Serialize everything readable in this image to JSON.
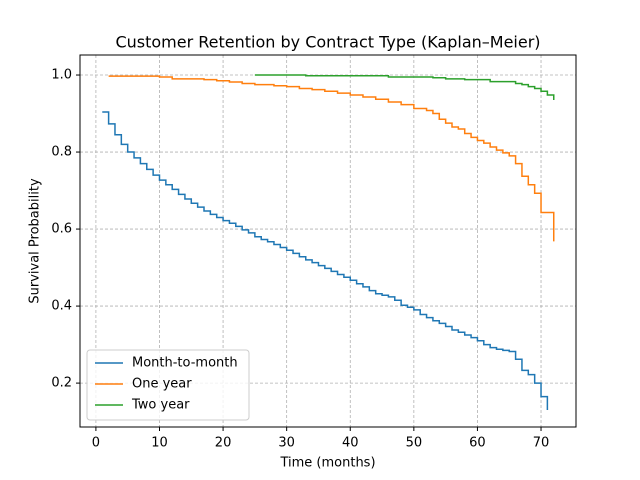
{
  "chart_data": {
    "type": "step",
    "title": "Customer Retention by Contract Type (Kaplan–Meier)",
    "x_label": "Time (months)",
    "y_label": "Survival Probability",
    "xlim": [
      -2.5,
      75.5
    ],
    "ylim": [
      0.086,
      1.052
    ],
    "xticks": [
      0,
      10,
      20,
      30,
      40,
      50,
      60,
      70
    ],
    "yticks": [
      0.2,
      0.4,
      0.6,
      0.8,
      {
        "value": 1,
        "label": "1.0"
      }
    ],
    "grid": true,
    "legend": "lower left",
    "series": [
      {
        "name": "Month-to-month",
        "color": "#1f77b4",
        "x": [
          1,
          2,
          3,
          4,
          5,
          6,
          7,
          8,
          9,
          10,
          11,
          12,
          13,
          14,
          15,
          16,
          17,
          18,
          19,
          20,
          21,
          22,
          23,
          24,
          25,
          26,
          27,
          28,
          29,
          30,
          31,
          32,
          33,
          34,
          35,
          36,
          37,
          38,
          39,
          40,
          41,
          42,
          43,
          44,
          45,
          46,
          47,
          48,
          49,
          50,
          51,
          52,
          53,
          54,
          55,
          56,
          57,
          58,
          59,
          60,
          61,
          62,
          63,
          64,
          65,
          66,
          67,
          68,
          69,
          70,
          71
        ],
        "values": [
          0.904,
          0.873,
          0.845,
          0.82,
          0.8,
          0.785,
          0.77,
          0.755,
          0.74,
          0.727,
          0.715,
          0.703,
          0.69,
          0.678,
          0.667,
          0.657,
          0.647,
          0.638,
          0.63,
          0.622,
          0.615,
          0.607,
          0.598,
          0.59,
          0.58,
          0.573,
          0.567,
          0.56,
          0.552,
          0.545,
          0.537,
          0.528,
          0.52,
          0.513,
          0.505,
          0.498,
          0.49,
          0.482,
          0.475,
          0.467,
          0.458,
          0.45,
          0.44,
          0.432,
          0.428,
          0.424,
          0.415,
          0.402,
          0.397,
          0.39,
          0.378,
          0.37,
          0.362,
          0.355,
          0.347,
          0.338,
          0.332,
          0.325,
          0.318,
          0.31,
          0.3,
          0.292,
          0.288,
          0.285,
          0.282,
          0.262,
          0.233,
          0.222,
          0.2,
          0.165,
          0.13
        ]
      },
      {
        "name": "One year",
        "color": "#ff7f0e",
        "x": [
          2,
          10,
          12,
          17,
          19,
          21,
          23,
          25,
          28,
          30,
          32,
          34,
          36,
          38,
          40,
          42,
          44,
          46,
          48,
          50,
          52,
          53,
          54,
          55,
          56,
          57,
          58,
          59,
          60,
          61,
          62,
          63,
          64,
          65,
          66,
          67,
          68,
          69,
          70,
          71,
          72
        ],
        "values": [
          0.997,
          0.995,
          0.99,
          0.988,
          0.985,
          0.982,
          0.978,
          0.975,
          0.972,
          0.97,
          0.965,
          0.962,
          0.958,
          0.953,
          0.948,
          0.943,
          0.937,
          0.93,
          0.923,
          0.913,
          0.908,
          0.9,
          0.885,
          0.875,
          0.865,
          0.86,
          0.848,
          0.838,
          0.83,
          0.823,
          0.813,
          0.805,
          0.798,
          0.79,
          0.77,
          0.737,
          0.715,
          0.693,
          0.643,
          0.643,
          0.568
        ]
      },
      {
        "name": "Two year",
        "color": "#2ca02c",
        "x": [
          25,
          33,
          46,
          53,
          55,
          58,
          62,
          66,
          67,
          68,
          69,
          70,
          71,
          72
        ],
        "values": [
          1.0,
          0.998,
          0.995,
          0.993,
          0.99,
          0.988,
          0.983,
          0.978,
          0.975,
          0.97,
          0.965,
          0.958,
          0.948,
          0.935
        ]
      }
    ]
  }
}
